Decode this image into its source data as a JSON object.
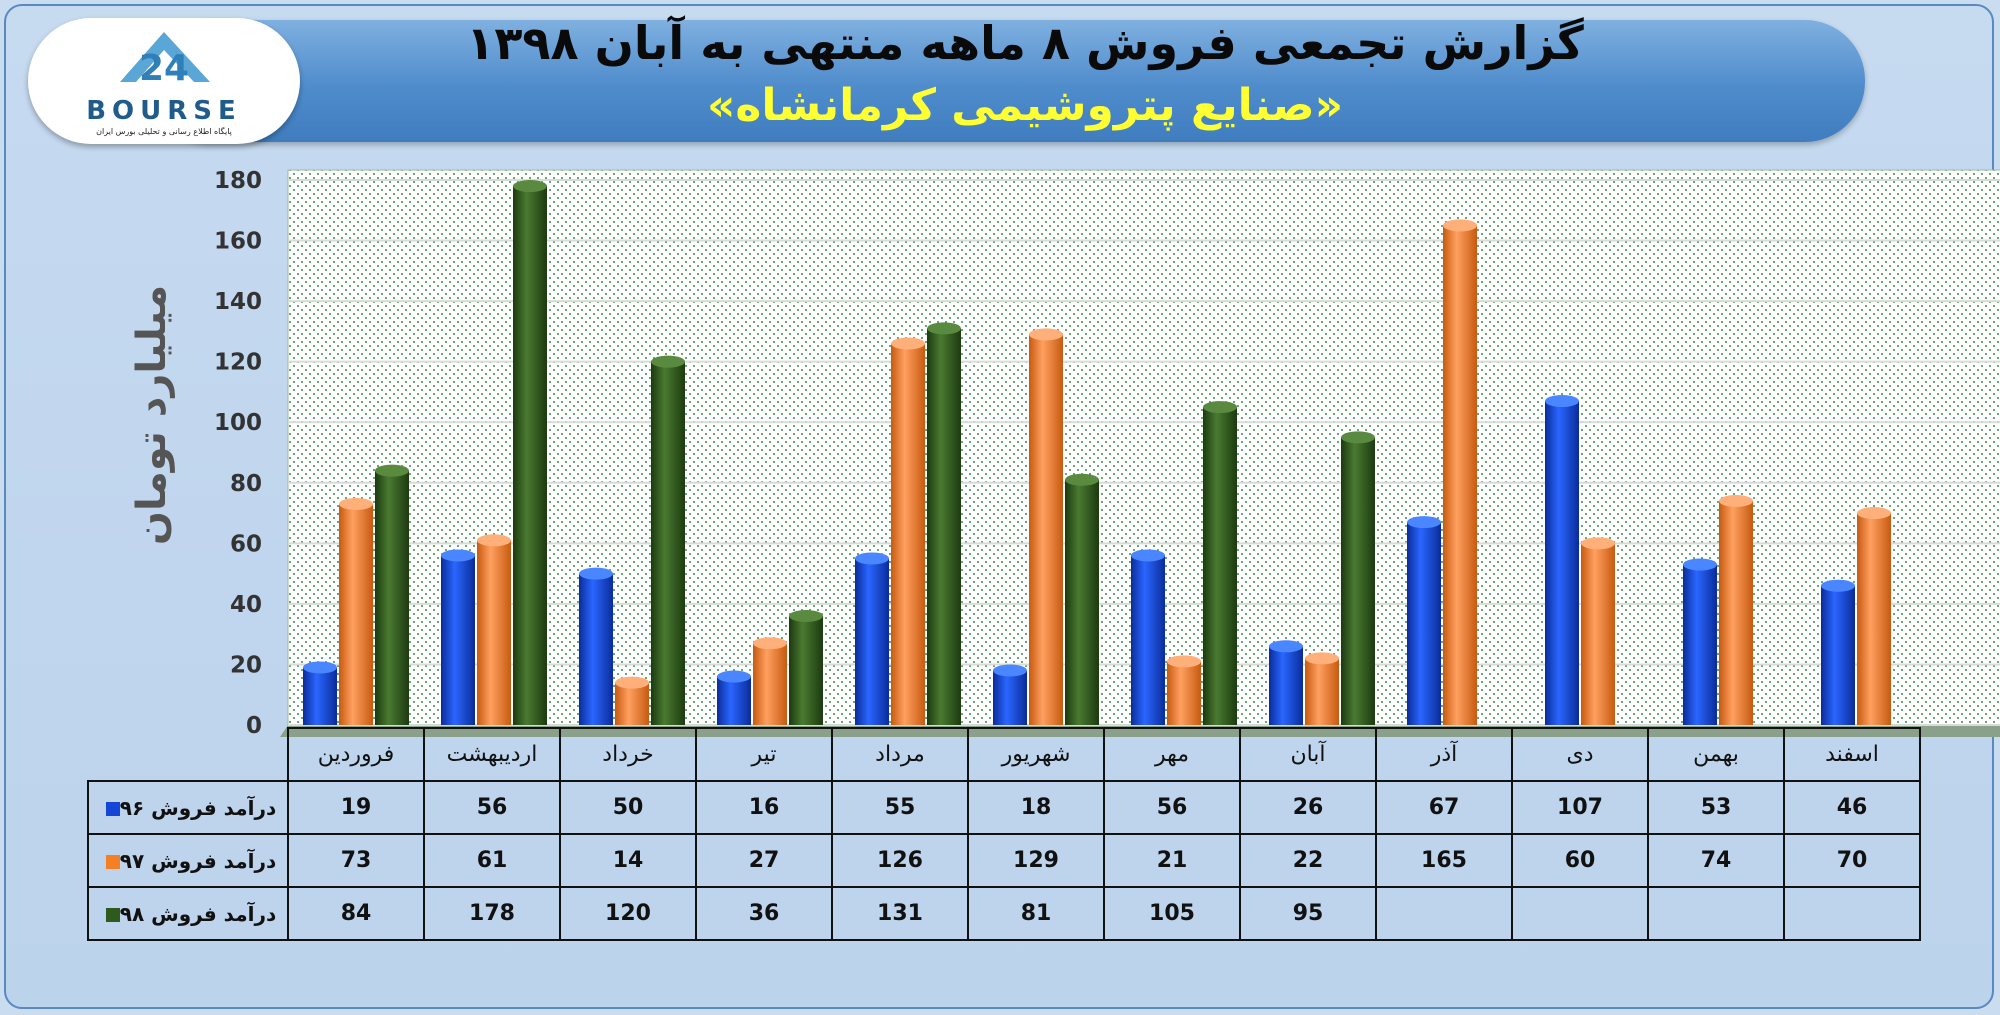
{
  "header": {
    "title": "گزارش تجمعی فروش ۸ ماهه منتهی به آبان ۱۳۹۸",
    "subtitle": "«صنایع پتروشیمی کرمانشاه»"
  },
  "logo": {
    "wordmark": "BOURSE",
    "tagline": "پایگاه اطلاع رسانی و تحلیلی بورس ایران"
  },
  "colors": {
    "series96": "#1346d8",
    "series97": "#f57f24",
    "series98": "#2f5a1e",
    "title": "#0a0a0a",
    "subtitle": "#ffff33"
  },
  "chart_data": {
    "type": "bar",
    "title": "گزارش تجمعی فروش ۸ ماهه منتهی به آبان ۱۳۹۸",
    "subtitle": "«صنایع پتروشیمی کرمانشاه»",
    "ylabel": "میلیارد تومان",
    "xlabel": "",
    "ylim": [
      0,
      180
    ],
    "yticks": [
      "0",
      "20",
      "40",
      "60",
      "80",
      "100",
      "120",
      "140",
      "160",
      "180"
    ],
    "grid": true,
    "legend": "data-table-left",
    "categories": [
      "فروردین",
      "اردیبهشت",
      "خرداد",
      "تیر",
      "مرداد",
      "شهریور",
      "مهر",
      "آبان",
      "آذر",
      "دی",
      "بهمن",
      "اسفند"
    ],
    "series": [
      {
        "name": "درآمد فروش ۹۶",
        "color": "#1346d8",
        "values": [
          19,
          56,
          50,
          16,
          55,
          18,
          56,
          26,
          67,
          107,
          53,
          46
        ]
      },
      {
        "name": "درآمد فروش ۹۷",
        "color": "#f57f24",
        "values": [
          73,
          61,
          14,
          27,
          126,
          129,
          21,
          22,
          165,
          60,
          74,
          70
        ]
      },
      {
        "name": "درآمد فروش ۹۸",
        "color": "#2f5a1e",
        "values": [
          84,
          178,
          120,
          36,
          131,
          81,
          105,
          95,
          null,
          null,
          null,
          null
        ]
      }
    ]
  }
}
